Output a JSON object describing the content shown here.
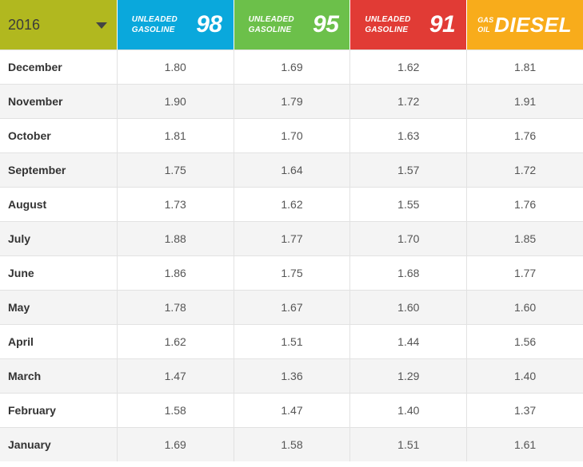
{
  "year_selector": {
    "value": "2016"
  },
  "fuels": [
    {
      "line1": "UNLEADED",
      "line2": "GASOLINE",
      "grade": "98",
      "color": "#0aa8dc"
    },
    {
      "line1": "UNLEADED",
      "line2": "GASOLINE",
      "grade": "95",
      "color": "#6cc04a"
    },
    {
      "line1": "UNLEADED",
      "line2": "GASOLINE",
      "grade": "91",
      "color": "#e13b35"
    },
    {
      "line1": "GAS",
      "line2": "OIL",
      "grade": "DIESEL",
      "color": "#f8ac1b"
    }
  ],
  "rows": [
    {
      "month": "December",
      "prices": [
        "1.80",
        "1.69",
        "1.62",
        "1.81"
      ]
    },
    {
      "month": "November",
      "prices": [
        "1.90",
        "1.79",
        "1.72",
        "1.91"
      ]
    },
    {
      "month": "October",
      "prices": [
        "1.81",
        "1.70",
        "1.63",
        "1.76"
      ]
    },
    {
      "month": "September",
      "prices": [
        "1.75",
        "1.64",
        "1.57",
        "1.72"
      ]
    },
    {
      "month": "August",
      "prices": [
        "1.73",
        "1.62",
        "1.55",
        "1.76"
      ]
    },
    {
      "month": "July",
      "prices": [
        "1.88",
        "1.77",
        "1.70",
        "1.85"
      ]
    },
    {
      "month": "June",
      "prices": [
        "1.86",
        "1.75",
        "1.68",
        "1.77"
      ]
    },
    {
      "month": "May",
      "prices": [
        "1.78",
        "1.67",
        "1.60",
        "1.60"
      ]
    },
    {
      "month": "April",
      "prices": [
        "1.62",
        "1.51",
        "1.44",
        "1.56"
      ]
    },
    {
      "month": "March",
      "prices": [
        "1.47",
        "1.36",
        "1.29",
        "1.40"
      ]
    },
    {
      "month": "February",
      "prices": [
        "1.58",
        "1.47",
        "1.40",
        "1.37"
      ]
    },
    {
      "month": "January",
      "prices": [
        "1.69",
        "1.58",
        "1.51",
        "1.61"
      ]
    }
  ],
  "icons": {
    "year_dropdown": "caret-down-icon"
  }
}
